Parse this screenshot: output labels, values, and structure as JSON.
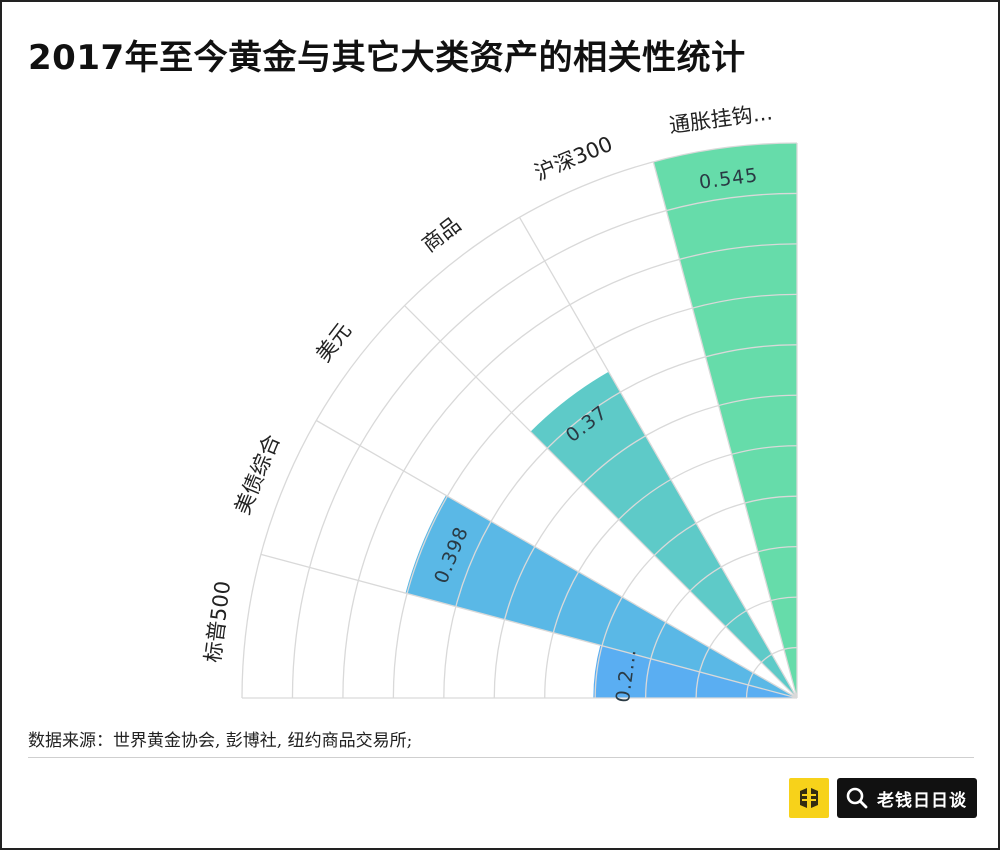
{
  "title": "2017年至今黄金与其它大类资产的相关性统计",
  "source": "数据来源：世界黄金协会, 彭博社, 纽约商品交易所;",
  "brand": {
    "name": "老钱日日谈",
    "logo_icon": "coin-logo-icon",
    "search_icon": "search-icon"
  },
  "chart_data": {
    "type": "polar-bar",
    "categories": [
      "标普500",
      "美债综合",
      "美元",
      "商品",
      "沪深300",
      "通胀挂钩..."
    ],
    "values": [
      0.2,
      0.398,
      null,
      0.37,
      null,
      0.545
    ],
    "value_labels": [
      "0.2...",
      "0.398",
      "",
      "0.37",
      "",
      "0.545"
    ],
    "rmax": 0.545,
    "grid": true,
    "colors": [
      "#5aaef2",
      "#5ab8e6",
      "#5ac4d8",
      "#5ecac8",
      "#60d2b4",
      "#66dcaa"
    ],
    "grid_color": "#d9d9d9"
  }
}
